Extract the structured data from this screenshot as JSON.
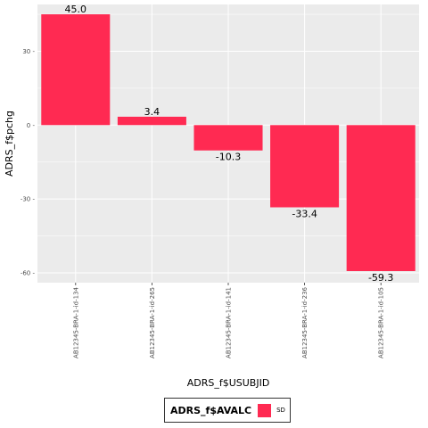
{
  "chart_data": {
    "type": "bar",
    "title": "",
    "xlabel": "ADRS_f$USUBJID",
    "ylabel": "ADRS_f$pchg",
    "categories": [
      "AB12345-BRA-1-id-134",
      "AB12345-BRA-1-id-265",
      "AB12345-BRA-1-id-141",
      "AB12345-BRA-1-id-236",
      "AB12345-BRA-1-id-105"
    ],
    "series": [
      {
        "name": "SD",
        "values": [
          45.0,
          3.4,
          -10.3,
          -33.4,
          -59.3
        ]
      }
    ],
    "data_labels": [
      "45.0",
      "3.4",
      "-10.3",
      "-33.4",
      "-59.3"
    ],
    "y_ticks": [
      30,
      0,
      -30,
      -60
    ],
    "y_tick_labels": [
      "30 -",
      "0 -",
      "-30 -",
      "-60 -"
    ],
    "ylim": [
      -64,
      49
    ],
    "grid": true,
    "legend": {
      "title": "ADRS_f$AVALC",
      "labels": [
        "SD"
      ],
      "placement": "bottom"
    },
    "colors": {
      "bar": "#FF2A52",
      "panel": "#EBEBEB",
      "grid": "#FFFFFF"
    }
  }
}
